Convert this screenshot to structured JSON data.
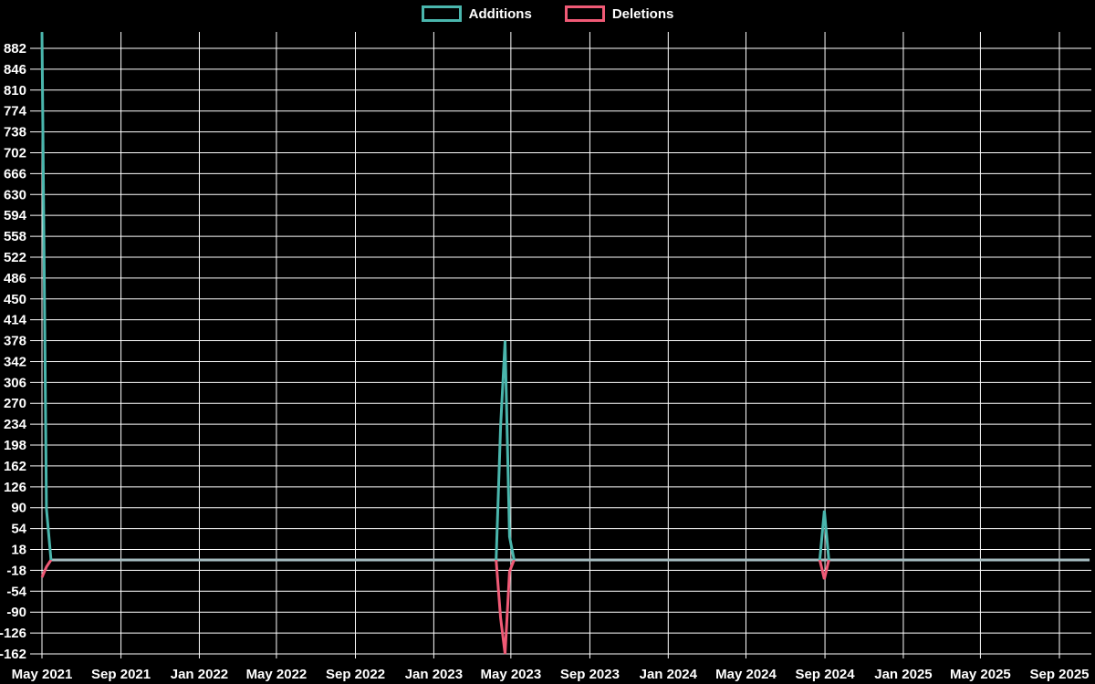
{
  "chart_data": {
    "type": "line",
    "title": "",
    "background_color": "#000000",
    "grid_color": "#ffffff",
    "text_color": "#ffffff",
    "legend_position": "top-center",
    "legend": [
      {
        "label": "Additions",
        "color": "#4ab6ad"
      },
      {
        "label": "Deletions",
        "color": "#f05a76"
      }
    ],
    "y_axis": {
      "tick_step": 36,
      "ticks": [
        882,
        846,
        810,
        774,
        738,
        702,
        666,
        630,
        594,
        558,
        522,
        486,
        450,
        414,
        378,
        342,
        306,
        270,
        234,
        198,
        162,
        126,
        90,
        54,
        18,
        -18,
        -54,
        -90,
        -126,
        -162
      ],
      "range": [
        -170,
        910
      ]
    },
    "x_axis": {
      "ticks": [
        {
          "date": "2021-05-01",
          "label": "May 2021"
        },
        {
          "date": "2021-09-01",
          "label": "Sep 2021"
        },
        {
          "date": "2022-01-01",
          "label": "Jan 2022"
        },
        {
          "date": "2022-05-01",
          "label": "May 2022"
        },
        {
          "date": "2022-09-01",
          "label": "Sep 2022"
        },
        {
          "date": "2023-01-01",
          "label": "Jan 2023"
        },
        {
          "date": "2023-05-01",
          "label": "May 2023"
        },
        {
          "date": "2023-09-01",
          "label": "Sep 2023"
        },
        {
          "date": "2024-01-01",
          "label": "Jan 2024"
        },
        {
          "date": "2024-05-01",
          "label": "May 2024"
        },
        {
          "date": "2024-09-01",
          "label": "Sep 2024"
        },
        {
          "date": "2025-01-01",
          "label": "Jan 2025"
        },
        {
          "date": "2025-05-01",
          "label": "May 2025"
        },
        {
          "date": "2025-09-01",
          "label": "Sep 2025"
        }
      ],
      "range": [
        "2021-05-01",
        "2025-10-18"
      ]
    },
    "zero_line": {
      "color": "#a3babe",
      "from": "2021-05-15",
      "to": "2025-10-18",
      "value": 0
    },
    "series": [
      {
        "name": "Additions",
        "color": "#4ab6ad",
        "points": [
          {
            "date": "2021-05-01",
            "value": 910
          },
          {
            "date": "2021-05-08",
            "value": 88
          },
          {
            "date": "2021-05-15",
            "value": 0
          },
          {
            "date": "2023-04-08",
            "value": 0
          },
          {
            "date": "2023-04-15",
            "value": 230
          },
          {
            "date": "2023-04-22",
            "value": 378
          },
          {
            "date": "2023-04-29",
            "value": 40
          },
          {
            "date": "2023-05-06",
            "value": 0
          },
          {
            "date": "2024-08-24",
            "value": 0
          },
          {
            "date": "2024-08-31",
            "value": 85
          },
          {
            "date": "2024-09-07",
            "value": 0
          },
          {
            "date": "2025-10-18",
            "value": 0
          }
        ]
      },
      {
        "name": "Deletions",
        "color": "#f05a76",
        "points": [
          {
            "date": "2021-05-01",
            "value": -30
          },
          {
            "date": "2021-05-08",
            "value": -12
          },
          {
            "date": "2021-05-15",
            "value": 0
          },
          {
            "date": "2023-04-08",
            "value": 0
          },
          {
            "date": "2023-04-15",
            "value": -100
          },
          {
            "date": "2023-04-22",
            "value": -162
          },
          {
            "date": "2023-04-29",
            "value": -20
          },
          {
            "date": "2023-05-06",
            "value": 0
          },
          {
            "date": "2024-08-24",
            "value": 0
          },
          {
            "date": "2024-08-31",
            "value": -33
          },
          {
            "date": "2024-09-07",
            "value": 0
          },
          {
            "date": "2025-10-18",
            "value": 0
          }
        ]
      }
    ]
  }
}
